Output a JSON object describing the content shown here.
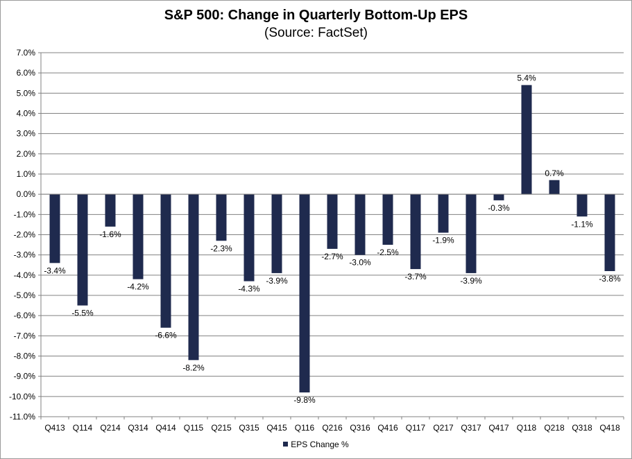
{
  "chart_data": {
    "type": "bar",
    "title": "S&P 500: Change in Quarterly Bottom-Up EPS",
    "subtitle": "(Source: FactSet)",
    "categories": [
      "Q413",
      "Q114",
      "Q214",
      "Q314",
      "Q414",
      "Q115",
      "Q215",
      "Q315",
      "Q415",
      "Q116",
      "Q216",
      "Q316",
      "Q416",
      "Q117",
      "Q217",
      "Q317",
      "Q417",
      "Q118",
      "Q218",
      "Q318",
      "Q418"
    ],
    "series": [
      {
        "name": "EPS Change %",
        "color": "#1f2a4e",
        "values": [
          -3.4,
          -5.5,
          -1.6,
          -4.2,
          -6.6,
          -8.2,
          -2.3,
          -4.3,
          -3.9,
          -9.8,
          -2.7,
          -3.0,
          -2.5,
          -3.7,
          -1.9,
          -3.9,
          -0.3,
          5.4,
          0.7,
          -1.1,
          -3.8
        ],
        "labels": [
          "-3.4%",
          "-5.5%",
          "-1.6%",
          "-4.2%",
          "-6.6%",
          "-8.2%",
          "-2.3%",
          "-4.3%",
          "-3.9%",
          "-9.8%",
          "-2.7%",
          "-3.0%",
          "-2.5%",
          "-3.7%",
          "-1.9%",
          "-3.9%",
          "-0.3%",
          "5.4%",
          "0.7%",
          "-1.1%",
          "-3.8%"
        ]
      }
    ],
    "ylim": [
      -11,
      7
    ],
    "ytick_step": 1,
    "ytick_labels": [
      "7.0%",
      "6.0%",
      "5.0%",
      "4.0%",
      "3.0%",
      "2.0%",
      "1.0%",
      "0.0%",
      "-1.0%",
      "-2.0%",
      "-3.0%",
      "-4.0%",
      "-5.0%",
      "-6.0%",
      "-7.0%",
      "-8.0%",
      "-9.0%",
      "-10.0%",
      "-11.0%"
    ],
    "grid": true,
    "legend_position": "bottom",
    "gridline_color": "#808080"
  }
}
